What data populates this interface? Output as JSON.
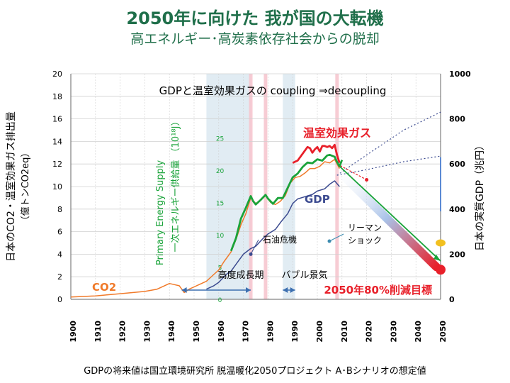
{
  "title": "2050年に向けた 我が国の大転機",
  "subtitle": "高エネルギー･高炭素依存社会からの脱却",
  "footnote": "GDPの将来値は国立環境研究所 脱温暖化2050プロジェクト A･Bシナリオの想定値",
  "colors": {
    "co2": "#f07a2a",
    "ghg": "#e8202a",
    "energy": "#1aa33a",
    "gdp": "#3c4b90",
    "title": "#1f6f4a",
    "target": "#e8202a",
    "band": "#c9dcea",
    "oil_band": "#f6c6cf"
  },
  "chart_data": {
    "type": "line",
    "header_text": "GDPと温室効果ガスの coupling ⇒decoupling",
    "xlim": [
      1900,
      2050
    ],
    "x_ticks": [
      "1900",
      "1910",
      "1920",
      "1930",
      "1940",
      "1950",
      "1960",
      "1970",
      "1980",
      "1990",
      "2000",
      "2010",
      "2020",
      "2030",
      "2040",
      "2050"
    ],
    "ylim_left": [
      0,
      20
    ],
    "y_ticks_left": [
      "0",
      "2",
      "4",
      "6",
      "8",
      "10",
      "12",
      "14",
      "16",
      "18",
      "20"
    ],
    "ylabel_left_1": "日本のCO2・温室効果ガス排出量",
    "ylabel_left_2": "（億トンCO2eq）",
    "ylim_right": [
      0,
      1000
    ],
    "y_ticks_right": [
      "0",
      "200",
      "400",
      "600",
      "800",
      "1000"
    ],
    "ylabel_right": "日本の実質GDP（兆円）",
    "energy_axis_label_1": "Primary Energy Supply",
    "energy_axis_label_2": "一次エネルギー供給量 （10¹⁸J）",
    "energy_ticks": [
      "0",
      "5",
      "10",
      "15",
      "20",
      "25"
    ],
    "energy_scale": {
      "min": 0,
      "max": 25,
      "co2_equivalent_min": 0,
      "co2_equivalent_max": 14.3
    },
    "series": [
      {
        "name": "CO2",
        "key": "co2",
        "points": [
          [
            1900,
            0.2
          ],
          [
            1905,
            0.25
          ],
          [
            1910,
            0.3
          ],
          [
            1915,
            0.4
          ],
          [
            1920,
            0.5
          ],
          [
            1925,
            0.6
          ],
          [
            1930,
            0.7
          ],
          [
            1935,
            0.9
          ],
          [
            1938,
            1.2
          ],
          [
            1940,
            1.4
          ],
          [
            1942,
            1.3
          ],
          [
            1944,
            1.2
          ],
          [
            1946,
            0.6
          ],
          [
            1948,
            0.9
          ],
          [
            1950,
            1.1
          ],
          [
            1952,
            1.3
          ],
          [
            1955,
            1.6
          ],
          [
            1958,
            2.2
          ],
          [
            1960,
            2.6
          ],
          [
            1962,
            3.3
          ],
          [
            1965,
            4.2
          ],
          [
            1967,
            5.3
          ],
          [
            1969,
            6.6
          ],
          [
            1971,
            7.6
          ],
          [
            1973,
            9.0
          ],
          [
            1975,
            8.5
          ],
          [
            1977,
            8.8
          ],
          [
            1979,
            9.2
          ],
          [
            1981,
            8.6
          ],
          [
            1983,
            8.4
          ],
          [
            1985,
            8.7
          ],
          [
            1987,
            9.2
          ],
          [
            1989,
            10.3
          ],
          [
            1991,
            10.8
          ],
          [
            1993,
            10.9
          ],
          [
            1995,
            11.2
          ],
          [
            1997,
            11.6
          ],
          [
            1999,
            11.6
          ],
          [
            2001,
            11.8
          ],
          [
            2003,
            12.2
          ],
          [
            2005,
            12.1
          ],
          [
            2007,
            12.4
          ],
          [
            2009,
            11.6
          ]
        ]
      },
      {
        "name": "温室効果ガス",
        "key": "ghg",
        "points": [
          [
            1990,
            12.1
          ],
          [
            1992,
            12.3
          ],
          [
            1994,
            12.9
          ],
          [
            1996,
            13.5
          ],
          [
            1997,
            13.4
          ],
          [
            1998,
            13.0
          ],
          [
            1999,
            13.3
          ],
          [
            2000,
            13.5
          ],
          [
            2001,
            13.1
          ],
          [
            2002,
            13.6
          ],
          [
            2003,
            13.6
          ],
          [
            2004,
            13.5
          ],
          [
            2005,
            13.6
          ],
          [
            2006,
            13.4
          ],
          [
            2007,
            13.7
          ],
          [
            2008,
            12.8
          ],
          [
            2009,
            12.1
          ]
        ]
      },
      {
        "name": "一次エネルギー供給量",
        "key": "energy",
        "points": [
          [
            1965,
            7.5
          ],
          [
            1967,
            9.5
          ],
          [
            1969,
            12.5
          ],
          [
            1971,
            14.2
          ],
          [
            1973,
            16.0
          ],
          [
            1974,
            15.2
          ],
          [
            1975,
            14.7
          ],
          [
            1977,
            15.4
          ],
          [
            1979,
            16.2
          ],
          [
            1980,
            15.6
          ],
          [
            1982,
            14.8
          ],
          [
            1984,
            15.7
          ],
          [
            1986,
            15.7
          ],
          [
            1988,
            17.3
          ],
          [
            1990,
            18.9
          ],
          [
            1992,
            19.5
          ],
          [
            1994,
            20.5
          ],
          [
            1996,
            21.2
          ],
          [
            1998,
            21.1
          ],
          [
            2000,
            21.7
          ],
          [
            2002,
            21.5
          ],
          [
            2004,
            22.3
          ],
          [
            2005,
            22.4
          ],
          [
            2007,
            22.1
          ],
          [
            2008,
            21.3
          ],
          [
            2009,
            20.6
          ],
          [
            2010,
            21.6
          ]
        ]
      },
      {
        "name": "GDP",
        "key": "gdp",
        "points": [
          [
            1955,
            45
          ],
          [
            1958,
            60
          ],
          [
            1960,
            75
          ],
          [
            1963,
            110
          ],
          [
            1965,
            125
          ],
          [
            1968,
            170
          ],
          [
            1970,
            200
          ],
          [
            1973,
            225
          ],
          [
            1975,
            235
          ],
          [
            1978,
            270
          ],
          [
            1980,
            290
          ],
          [
            1983,
            310
          ],
          [
            1985,
            340
          ],
          [
            1988,
            380
          ],
          [
            1990,
            425
          ],
          [
            1992,
            445
          ],
          [
            1995,
            455
          ],
          [
            1998,
            465
          ],
          [
            2000,
            480
          ],
          [
            2003,
            490
          ],
          [
            2005,
            510
          ],
          [
            2007,
            525
          ],
          [
            2009,
            500
          ]
        ]
      }
    ],
    "projections": [
      {
        "key": "gdp_high",
        "points": [
          [
            2008,
            550
          ],
          [
            2020,
            640
          ],
          [
            2035,
            750
          ],
          [
            2050,
            830
          ]
        ]
      },
      {
        "key": "gdp_low",
        "points": [
          [
            2008,
            550
          ],
          [
            2020,
            575
          ],
          [
            2035,
            610
          ],
          [
            2050,
            635
          ]
        ]
      },
      {
        "key": "ghg_path",
        "points": [
          [
            2008,
            12.0
          ],
          [
            2020,
            10.6
          ],
          [
            2050,
            3.4
          ]
        ]
      },
      {
        "key": "target_path",
        "points": [
          [
            2008,
            11.5
          ],
          [
            2050,
            2.5
          ]
        ]
      }
    ],
    "periods": [
      {
        "label": "高度成長期",
        "from": 1955,
        "to": 1973
      },
      {
        "label": "バブル景気",
        "from": 1986,
        "to": 1991
      }
    ],
    "events": [
      {
        "label": "石油危機",
        "years": [
          1973,
          1979
        ]
      },
      {
        "label": "リーマン\nショック",
        "years": [
          2008
        ]
      }
    ],
    "target": {
      "label": "2050年80%削減目標",
      "year": 2050,
      "value": 2.5
    },
    "series_labels": {
      "co2": "CO2",
      "ghg": "温室効果ガス",
      "gdp": "GDP"
    }
  }
}
